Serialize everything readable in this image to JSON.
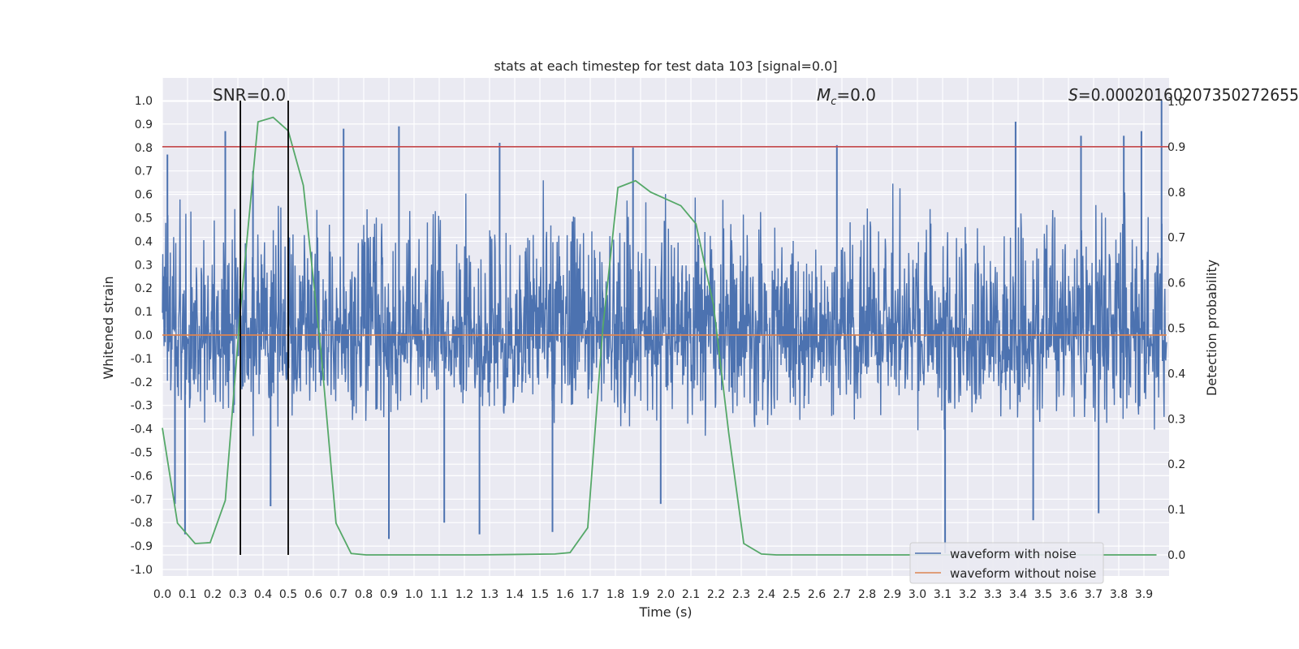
{
  "chart_data": {
    "type": "line",
    "title": "stats at each timestep for test data 103 [signal=0.0]",
    "xlabel": "Time (s)",
    "ylabel": "Whitened strain",
    "y2label": "Detection probability",
    "xlim": [
      0.0,
      4.0
    ],
    "ylim": [
      -1.05,
      1.1
    ],
    "y2lim": [
      -0.05,
      1.0
    ],
    "x_ticks": [
      "0.0",
      "0.1",
      "0.2",
      "0.3",
      "0.4",
      "0.5",
      "0.6",
      "0.7",
      "0.8",
      "0.9",
      "1.0",
      "1.1",
      "1.2",
      "1.3",
      "1.4",
      "1.5",
      "1.6",
      "1.7",
      "1.8",
      "1.9",
      "2.0",
      "2.1",
      "2.2",
      "2.3",
      "2.4",
      "2.5",
      "2.6",
      "2.7",
      "2.8",
      "2.9",
      "3.0",
      "3.1",
      "3.2",
      "3.3",
      "3.4",
      "3.5",
      "3.6",
      "3.7",
      "3.8",
      "3.9"
    ],
    "y_ticks": [
      "1.0",
      "0.9",
      "0.8",
      "0.7",
      "0.6",
      "0.5",
      "0.4",
      "0.3",
      "0.2",
      "0.1",
      "0.0",
      "-0.1",
      "-0.2",
      "-0.3",
      "-0.4",
      "-0.5",
      "-0.6",
      "-0.7",
      "-0.8",
      "-0.9",
      "-1.0"
    ],
    "y2_ticks": [
      "1.0",
      "0.9",
      "0.8",
      "0.7",
      "0.6",
      "0.5",
      "0.4",
      "0.3",
      "0.2",
      "0.1",
      "0.0"
    ],
    "grid": true,
    "annotations": {
      "snr": "SNR=0.0",
      "mc_symbol": "M",
      "mc_sub": "c",
      "mc_value": "=0.0",
      "s_symbol": "S",
      "s_value": "=0.00020160207350272655"
    },
    "vertical_lines": [
      0.31,
      0.5
    ],
    "threshold_y2": 0.9,
    "series": [
      {
        "name": "waveform with noise",
        "color": "#4c72b0",
        "kind": "noise",
        "typical_range": [
          -0.4,
          0.6
        ],
        "peaks_up": [
          [
            0.02,
            0.77
          ],
          [
            0.25,
            0.87
          ],
          [
            0.36,
            0.7
          ],
          [
            0.72,
            0.88
          ],
          [
            0.94,
            0.89
          ],
          [
            1.34,
            0.82
          ],
          [
            1.87,
            0.8
          ],
          [
            2.68,
            0.81
          ],
          [
            3.39,
            0.91
          ],
          [
            3.65,
            0.85
          ],
          [
            3.82,
            0.85
          ],
          [
            3.89,
            0.87
          ],
          [
            3.97,
            1.0
          ]
        ],
        "peaks_down": [
          [
            0.05,
            -0.72
          ],
          [
            0.09,
            -0.85
          ],
          [
            0.43,
            -0.73
          ],
          [
            0.9,
            -0.87
          ],
          [
            1.12,
            -0.8
          ],
          [
            1.26,
            -0.85
          ],
          [
            1.55,
            -0.84
          ],
          [
            1.98,
            -0.72
          ],
          [
            3.11,
            -0.93
          ],
          [
            3.46,
            -0.79
          ],
          [
            3.72,
            -0.76
          ]
        ]
      },
      {
        "name": "waveform without noise",
        "color": "#dd8452",
        "x": [
          0.0,
          3.99
        ],
        "y": [
          0.0,
          0.0
        ]
      },
      {
        "name": "detection probability",
        "color": "#55a868",
        "axis": "right",
        "x": [
          0.0,
          0.06,
          0.13,
          0.19,
          0.25,
          0.31,
          0.38,
          0.44,
          0.5,
          0.56,
          0.63,
          0.69,
          0.75,
          0.81,
          1.25,
          1.56,
          1.62,
          1.69,
          1.75,
          1.81,
          1.88,
          1.94,
          2.0,
          2.06,
          2.12,
          2.19,
          2.25,
          2.31,
          2.38,
          2.44,
          3.0,
          3.5,
          3.95
        ],
        "y": [
          0.28,
          0.07,
          0.025,
          0.027,
          0.12,
          0.54,
          0.955,
          0.965,
          0.935,
          0.815,
          0.45,
          0.07,
          0.003,
          0.0,
          0.0,
          0.002,
          0.005,
          0.06,
          0.5,
          0.81,
          0.825,
          0.8,
          0.785,
          0.77,
          0.73,
          0.55,
          0.27,
          0.025,
          0.002,
          0.0,
          0.0,
          0.0,
          0.0
        ]
      }
    ],
    "legend": {
      "position": "lower-right",
      "entries": [
        {
          "label": "waveform with noise",
          "color": "#4c72b0"
        },
        {
          "label": "waveform without noise",
          "color": "#dd8452"
        }
      ]
    },
    "colors": {
      "plot_bg": "#eaeaf2",
      "grid": "#ffffff",
      "threshold": "#c44e52",
      "vline": "#000000"
    }
  }
}
